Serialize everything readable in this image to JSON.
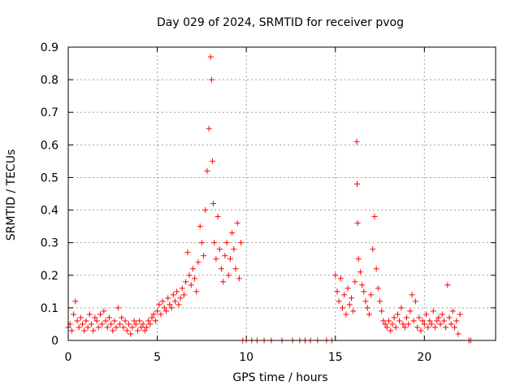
{
  "chart_data": {
    "type": "scatter",
    "title": "Day 029 of 2024, SRMTID for receiver pvog",
    "xlabel": "GPS time / hours",
    "ylabel": "SRMTID / TECUs",
    "xlim": [
      0,
      24
    ],
    "ylim": [
      0,
      0.9
    ],
    "xticks": [
      0,
      5,
      10,
      15,
      20
    ],
    "yticks": [
      0,
      0.1,
      0.2,
      0.3,
      0.4,
      0.5,
      0.6,
      0.7,
      0.8,
      0.9
    ],
    "xtick_labels": [
      "0",
      "5",
      "10",
      "15",
      "20"
    ],
    "ytick_labels": [
      "0",
      "0.1",
      "0.2",
      "0.3",
      "0.4",
      "0.5",
      "0.6",
      "0.7",
      "0.8",
      "0.9"
    ],
    "grid": true,
    "marker": "+",
    "color": "#ff0000",
    "series": [
      {
        "name": "SRMTID",
        "points": [
          [
            0.0,
            0.04
          ],
          [
            0.1,
            0.05
          ],
          [
            0.2,
            0.03
          ],
          [
            0.3,
            0.08
          ],
          [
            0.4,
            0.12
          ],
          [
            0.5,
            0.06
          ],
          [
            0.6,
            0.04
          ],
          [
            0.7,
            0.07
          ],
          [
            0.8,
            0.05
          ],
          [
            0.9,
            0.03
          ],
          [
            1.0,
            0.06
          ],
          [
            1.1,
            0.04
          ],
          [
            1.2,
            0.08
          ],
          [
            1.3,
            0.05
          ],
          [
            1.4,
            0.03
          ],
          [
            1.5,
            0.07
          ],
          [
            1.6,
            0.06
          ],
          [
            1.7,
            0.04
          ],
          [
            1.8,
            0.08
          ],
          [
            1.9,
            0.05
          ],
          [
            2.0,
            0.09
          ],
          [
            2.1,
            0.06
          ],
          [
            2.2,
            0.04
          ],
          [
            2.3,
            0.07
          ],
          [
            2.4,
            0.05
          ],
          [
            2.5,
            0.03
          ],
          [
            2.6,
            0.06
          ],
          [
            2.7,
            0.04
          ],
          [
            2.8,
            0.1
          ],
          [
            2.9,
            0.05
          ],
          [
            3.0,
            0.07
          ],
          [
            3.1,
            0.04
          ],
          [
            3.2,
            0.06
          ],
          [
            3.3,
            0.03
          ],
          [
            3.4,
            0.05
          ],
          [
            3.5,
            0.02
          ],
          [
            3.6,
            0.04
          ],
          [
            3.7,
            0.06
          ],
          [
            3.8,
            0.05
          ],
          [
            3.9,
            0.03
          ],
          [
            4.0,
            0.06
          ],
          [
            4.1,
            0.04
          ],
          [
            4.2,
            0.05
          ],
          [
            4.3,
            0.03
          ],
          [
            4.4,
            0.04
          ],
          [
            4.5,
            0.06
          ],
          [
            4.6,
            0.05
          ],
          [
            4.7,
            0.07
          ],
          [
            4.8,
            0.08
          ],
          [
            4.9,
            0.06
          ],
          [
            5.0,
            0.09
          ],
          [
            5.1,
            0.11
          ],
          [
            5.2,
            0.08
          ],
          [
            5.3,
            0.12
          ],
          [
            5.4,
            0.1
          ],
          [
            5.5,
            0.09
          ],
          [
            5.6,
            0.13
          ],
          [
            5.7,
            0.11
          ],
          [
            5.8,
            0.1
          ],
          [
            5.9,
            0.14
          ],
          [
            6.0,
            0.12
          ],
          [
            6.1,
            0.15
          ],
          [
            6.2,
            0.11
          ],
          [
            6.3,
            0.13
          ],
          [
            6.4,
            0.16
          ],
          [
            6.5,
            0.14
          ],
          [
            6.6,
            0.18
          ],
          [
            6.7,
            0.27
          ],
          [
            6.8,
            0.2
          ],
          [
            6.9,
            0.17
          ],
          [
            7.0,
            0.22
          ],
          [
            7.1,
            0.19
          ],
          [
            7.2,
            0.15
          ],
          [
            7.3,
            0.24
          ],
          [
            7.4,
            0.35
          ],
          [
            7.5,
            0.3
          ],
          [
            7.6,
            0.26
          ],
          [
            7.7,
            0.4
          ],
          [
            7.8,
            0.52
          ],
          [
            7.9,
            0.65
          ],
          [
            8.0,
            0.87
          ],
          [
            8.05,
            0.8
          ],
          [
            8.1,
            0.55
          ],
          [
            8.15,
            0.42
          ],
          [
            8.2,
            0.3
          ],
          [
            8.3,
            0.25
          ],
          [
            8.4,
            0.38
          ],
          [
            8.5,
            0.28
          ],
          [
            8.6,
            0.22
          ],
          [
            8.7,
            0.18
          ],
          [
            8.8,
            0.26
          ],
          [
            8.9,
            0.3
          ],
          [
            9.0,
            0.2
          ],
          [
            9.1,
            0.25
          ],
          [
            9.2,
            0.33
          ],
          [
            9.3,
            0.28
          ],
          [
            9.4,
            0.22
          ],
          [
            9.5,
            0.36
          ],
          [
            9.6,
            0.19
          ],
          [
            9.7,
            0.3
          ],
          [
            9.8,
            0.0
          ],
          [
            10.0,
            0.0
          ],
          [
            10.3,
            0.0
          ],
          [
            10.6,
            0.0
          ],
          [
            11.0,
            0.0
          ],
          [
            11.4,
            0.0
          ],
          [
            12.0,
            0.0
          ],
          [
            12.6,
            0.0
          ],
          [
            13.0,
            0.0
          ],
          [
            13.3,
            0.0
          ],
          [
            13.6,
            0.0
          ],
          [
            14.0,
            0.0
          ],
          [
            14.5,
            0.0
          ],
          [
            14.8,
            0.0
          ],
          [
            15.0,
            0.2
          ],
          [
            15.1,
            0.15
          ],
          [
            15.2,
            0.12
          ],
          [
            15.3,
            0.19
          ],
          [
            15.4,
            0.1
          ],
          [
            15.5,
            0.14
          ],
          [
            15.6,
            0.08
          ],
          [
            15.7,
            0.16
          ],
          [
            15.8,
            0.11
          ],
          [
            15.9,
            0.13
          ],
          [
            16.0,
            0.09
          ],
          [
            16.1,
            0.18
          ],
          [
            16.2,
            0.61
          ],
          [
            16.22,
            0.48
          ],
          [
            16.25,
            0.36
          ],
          [
            16.3,
            0.25
          ],
          [
            16.4,
            0.21
          ],
          [
            16.5,
            0.17
          ],
          [
            16.6,
            0.15
          ],
          [
            16.7,
            0.12
          ],
          [
            16.8,
            0.1
          ],
          [
            16.9,
            0.08
          ],
          [
            17.0,
            0.14
          ],
          [
            17.1,
            0.28
          ],
          [
            17.2,
            0.38
          ],
          [
            17.3,
            0.22
          ],
          [
            17.4,
            0.16
          ],
          [
            17.5,
            0.12
          ],
          [
            17.6,
            0.09
          ],
          [
            17.7,
            0.06
          ],
          [
            17.8,
            0.05
          ],
          [
            17.9,
            0.04
          ],
          [
            18.0,
            0.06
          ],
          [
            18.1,
            0.03
          ],
          [
            18.2,
            0.05
          ],
          [
            18.3,
            0.07
          ],
          [
            18.4,
            0.04
          ],
          [
            18.5,
            0.08
          ],
          [
            18.6,
            0.06
          ],
          [
            18.7,
            0.1
          ],
          [
            18.8,
            0.05
          ],
          [
            18.9,
            0.04
          ],
          [
            19.0,
            0.07
          ],
          [
            19.1,
            0.05
          ],
          [
            19.2,
            0.09
          ],
          [
            19.3,
            0.14
          ],
          [
            19.4,
            0.06
          ],
          [
            19.5,
            0.12
          ],
          [
            19.6,
            0.04
          ],
          [
            19.7,
            0.07
          ],
          [
            19.8,
            0.03
          ],
          [
            19.9,
            0.06
          ],
          [
            20.0,
            0.05
          ],
          [
            20.1,
            0.08
          ],
          [
            20.2,
            0.04
          ],
          [
            20.3,
            0.06
          ],
          [
            20.4,
            0.05
          ],
          [
            20.5,
            0.09
          ],
          [
            20.6,
            0.04
          ],
          [
            20.7,
            0.06
          ],
          [
            20.8,
            0.07
          ],
          [
            20.9,
            0.05
          ],
          [
            21.0,
            0.08
          ],
          [
            21.1,
            0.06
          ],
          [
            21.2,
            0.04
          ],
          [
            21.3,
            0.17
          ],
          [
            21.4,
            0.07
          ],
          [
            21.5,
            0.05
          ],
          [
            21.6,
            0.09
          ],
          [
            21.7,
            0.04
          ],
          [
            21.8,
            0.06
          ],
          [
            21.9,
            0.02
          ],
          [
            22.0,
            0.08
          ],
          [
            22.5,
            0.0
          ],
          [
            22.6,
            0.0
          ]
        ]
      }
    ]
  }
}
